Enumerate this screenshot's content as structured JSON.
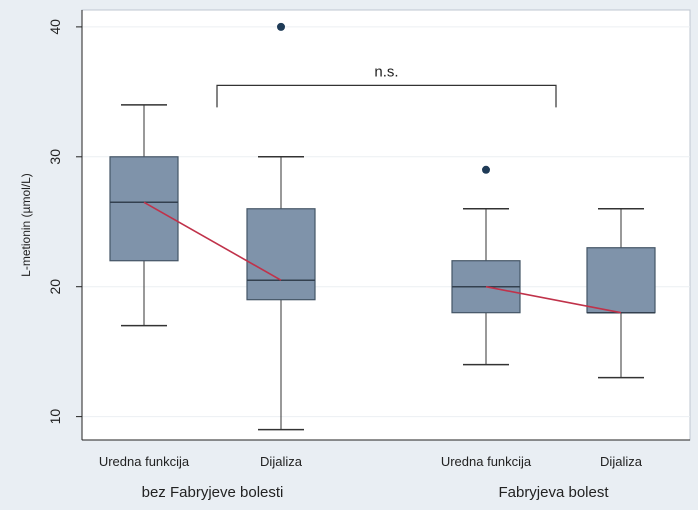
{
  "chart_data": {
    "type": "box",
    "ylabel": "L-metionin (µmol/L)",
    "yticks": [
      10,
      20,
      30,
      40
    ],
    "ylim": [
      8.2,
      41.3
    ],
    "grid": true,
    "groups": [
      {
        "name": "bez Fabryjeve bolesti"
      },
      {
        "name": "Fabryjeva bolest"
      }
    ],
    "boxes": [
      {
        "label": "Uredna funkcija",
        "group": "bez Fabryjeve bolesti",
        "whisker_low": 17,
        "q1": 22,
        "median": 26.5,
        "q3": 30,
        "whisker_high": 34,
        "outliers": []
      },
      {
        "label": "Dijaliza",
        "group": "bez Fabryjeve bolesti",
        "whisker_low": 9,
        "q1": 19,
        "median": 20.5,
        "q3": 26,
        "whisker_high": 30,
        "outliers": [
          40
        ]
      },
      {
        "label": "Uredna funkcija",
        "group": "Fabryjeva bolest",
        "whisker_low": 14,
        "q1": 18,
        "median": 20,
        "q3": 22,
        "whisker_high": 26,
        "outliers": [
          29
        ]
      },
      {
        "label": "Dijaliza",
        "group": "Fabryjeva bolest",
        "whisker_low": 13,
        "q1": 18,
        "median": 18,
        "q3": 23,
        "whisker_high": 26,
        "outliers": []
      }
    ],
    "median_lines": [
      [
        0,
        1
      ],
      [
        2,
        3
      ]
    ],
    "annotation": {
      "text": "n.s.",
      "from_box": 1,
      "to_box": 2,
      "y": 35.5
    },
    "colors": {
      "box": "#7f93aa",
      "box_border": "#445566",
      "median_line": "#c0324a",
      "outlier": "#1f3b57",
      "background": "#e9eef3",
      "plot_bg": "#ffffff"
    }
  }
}
